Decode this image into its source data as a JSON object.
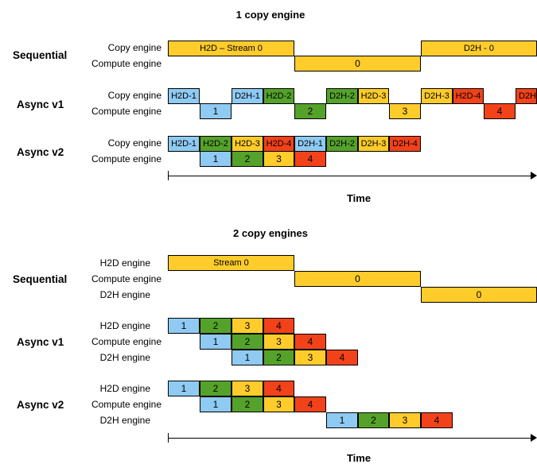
{
  "headings": {
    "one": "1 copy engine",
    "two": "2 copy engines"
  },
  "modes": {
    "sequential": "Sequential",
    "async_v1": "Async v1",
    "async_v2": "Async v2"
  },
  "engines": {
    "copy": "Copy engine",
    "compute": "Compute engine",
    "h2d": "H2D engine",
    "d2h": "D2H engine"
  },
  "blocks": {
    "s1_h2d": "H2D – Stream 0",
    "s1_d2h": "D2H - 0",
    "zero": "0",
    "stream0": "Stream 0",
    "h2d1": "H2D-1",
    "h2d2": "H2D-2",
    "h2d3": "H2D-3",
    "h2d4": "H2D-4",
    "d2h1": "D2H-1",
    "d2h2": "D2H-2",
    "d2h3": "D2H-3",
    "d2h4": "D2H-4",
    "n1": "1",
    "n2": "2",
    "n3": "3",
    "n4": "4"
  },
  "axis": {
    "label": "Time"
  },
  "colors": {
    "stream0": "#ffcc2b",
    "stream1": "#8fcaf2",
    "stream2": "#55a22b",
    "stream3": "#ffcc2b",
    "stream4": "#f2421a"
  }
}
